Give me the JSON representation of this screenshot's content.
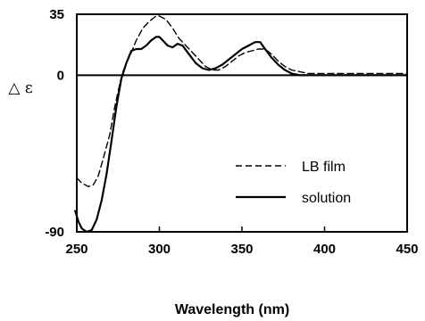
{
  "chart_data": {
    "type": "line",
    "title": "",
    "xlabel": "Wavelength (nm)",
    "ylabel": "△ ε",
    "xlim": [
      250,
      450
    ],
    "ylim": [
      -90,
      35
    ],
    "x_ticks": [
      250,
      300,
      350,
      400,
      450
    ],
    "y_ticks": [
      35,
      0,
      -90
    ],
    "x_tick_labels": [
      "250",
      "300",
      "350",
      "400",
      "450"
    ],
    "y_tick_labels": [
      "35",
      "0",
      "-90"
    ],
    "zero_line": true,
    "grid": false,
    "legend_position": "center-right",
    "series": [
      {
        "name": "LB film",
        "style": "dashed",
        "color": "#000000",
        "x": [
          250,
          253,
          257,
          260,
          263,
          266,
          270,
          273,
          276,
          278,
          280,
          283,
          286,
          290,
          294,
          298,
          300,
          304,
          308,
          312,
          316,
          320,
          324,
          328,
          332,
          336,
          340,
          344,
          348,
          352,
          356,
          360,
          364,
          368,
          372,
          376,
          380,
          385,
          390,
          400,
          410,
          420,
          430,
          440,
          450
        ],
        "y": [
          -59,
          -62,
          -64,
          -63,
          -58,
          -48,
          -34,
          -18,
          -5,
          2,
          7,
          13,
          20,
          27,
          31,
          34,
          34,
          32,
          27,
          21,
          17,
          13,
          9,
          5,
          3,
          3,
          5,
          8,
          11,
          13,
          14,
          15,
          15,
          12,
          8,
          5,
          3,
          2,
          1,
          1,
          1,
          1,
          1,
          1,
          1
        ]
      },
      {
        "name": "solution",
        "style": "solid",
        "color": "#000000",
        "x": [
          249,
          251,
          253,
          256,
          259,
          262,
          265,
          268,
          271,
          274,
          277,
          280,
          283,
          286,
          289,
          292,
          295,
          298,
          300,
          302,
          305,
          308,
          311,
          314,
          318,
          322,
          326,
          330,
          334,
          338,
          342,
          346,
          350,
          354,
          358,
          361,
          364,
          368,
          372,
          376,
          380,
          385,
          390,
          400,
          410,
          420,
          430,
          440,
          450
        ],
        "y": [
          -78,
          -84,
          -88,
          -90,
          -89,
          -83,
          -72,
          -57,
          -38,
          -18,
          -2,
          7,
          14,
          15,
          15,
          17,
          20,
          22,
          22,
          20,
          17,
          16,
          18,
          17,
          12,
          7,
          4,
          3,
          4,
          6,
          9,
          12,
          15,
          17,
          19,
          19,
          15,
          10,
          6,
          3,
          1,
          0,
          0,
          0,
          0,
          0,
          0,
          0,
          0
        ]
      }
    ]
  }
}
